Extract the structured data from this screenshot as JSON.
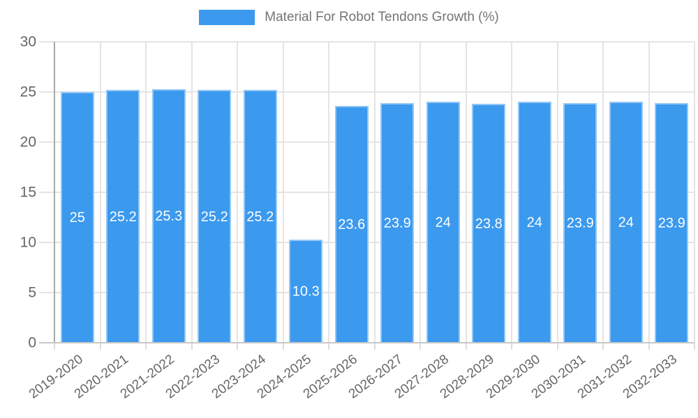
{
  "legend": {
    "label": "Material For Robot Tendons Growth (%)",
    "swatch_color": "#3B99EE"
  },
  "chart_data": {
    "type": "bar",
    "title": "Material For Robot Tendons Growth (%)",
    "xlabel": "",
    "ylabel": "",
    "categories": [
      "2019-2020",
      "2020-2021",
      "2021-2022",
      "2022-2023",
      "2023-2024",
      "2024-2025",
      "2025-2026",
      "2026-2027",
      "2027-2028",
      "2028-2029",
      "2029-2030",
      "2030-2031",
      "2031-2032",
      "2032-2033"
    ],
    "values": [
      25,
      25.2,
      25.3,
      25.2,
      25.2,
      10.3,
      23.6,
      23.9,
      24,
      23.8,
      24,
      23.9,
      24,
      23.9
    ],
    "ylim": [
      0,
      30
    ],
    "yticks": [
      0,
      5,
      10,
      15,
      20,
      25,
      30
    ],
    "grid": true,
    "legend_position": "top",
    "bar_color": "#3B99EE",
    "bar_label_color": "#ffffff",
    "tick_label_color": "#666666",
    "grid_color": "#e4e4e4"
  }
}
